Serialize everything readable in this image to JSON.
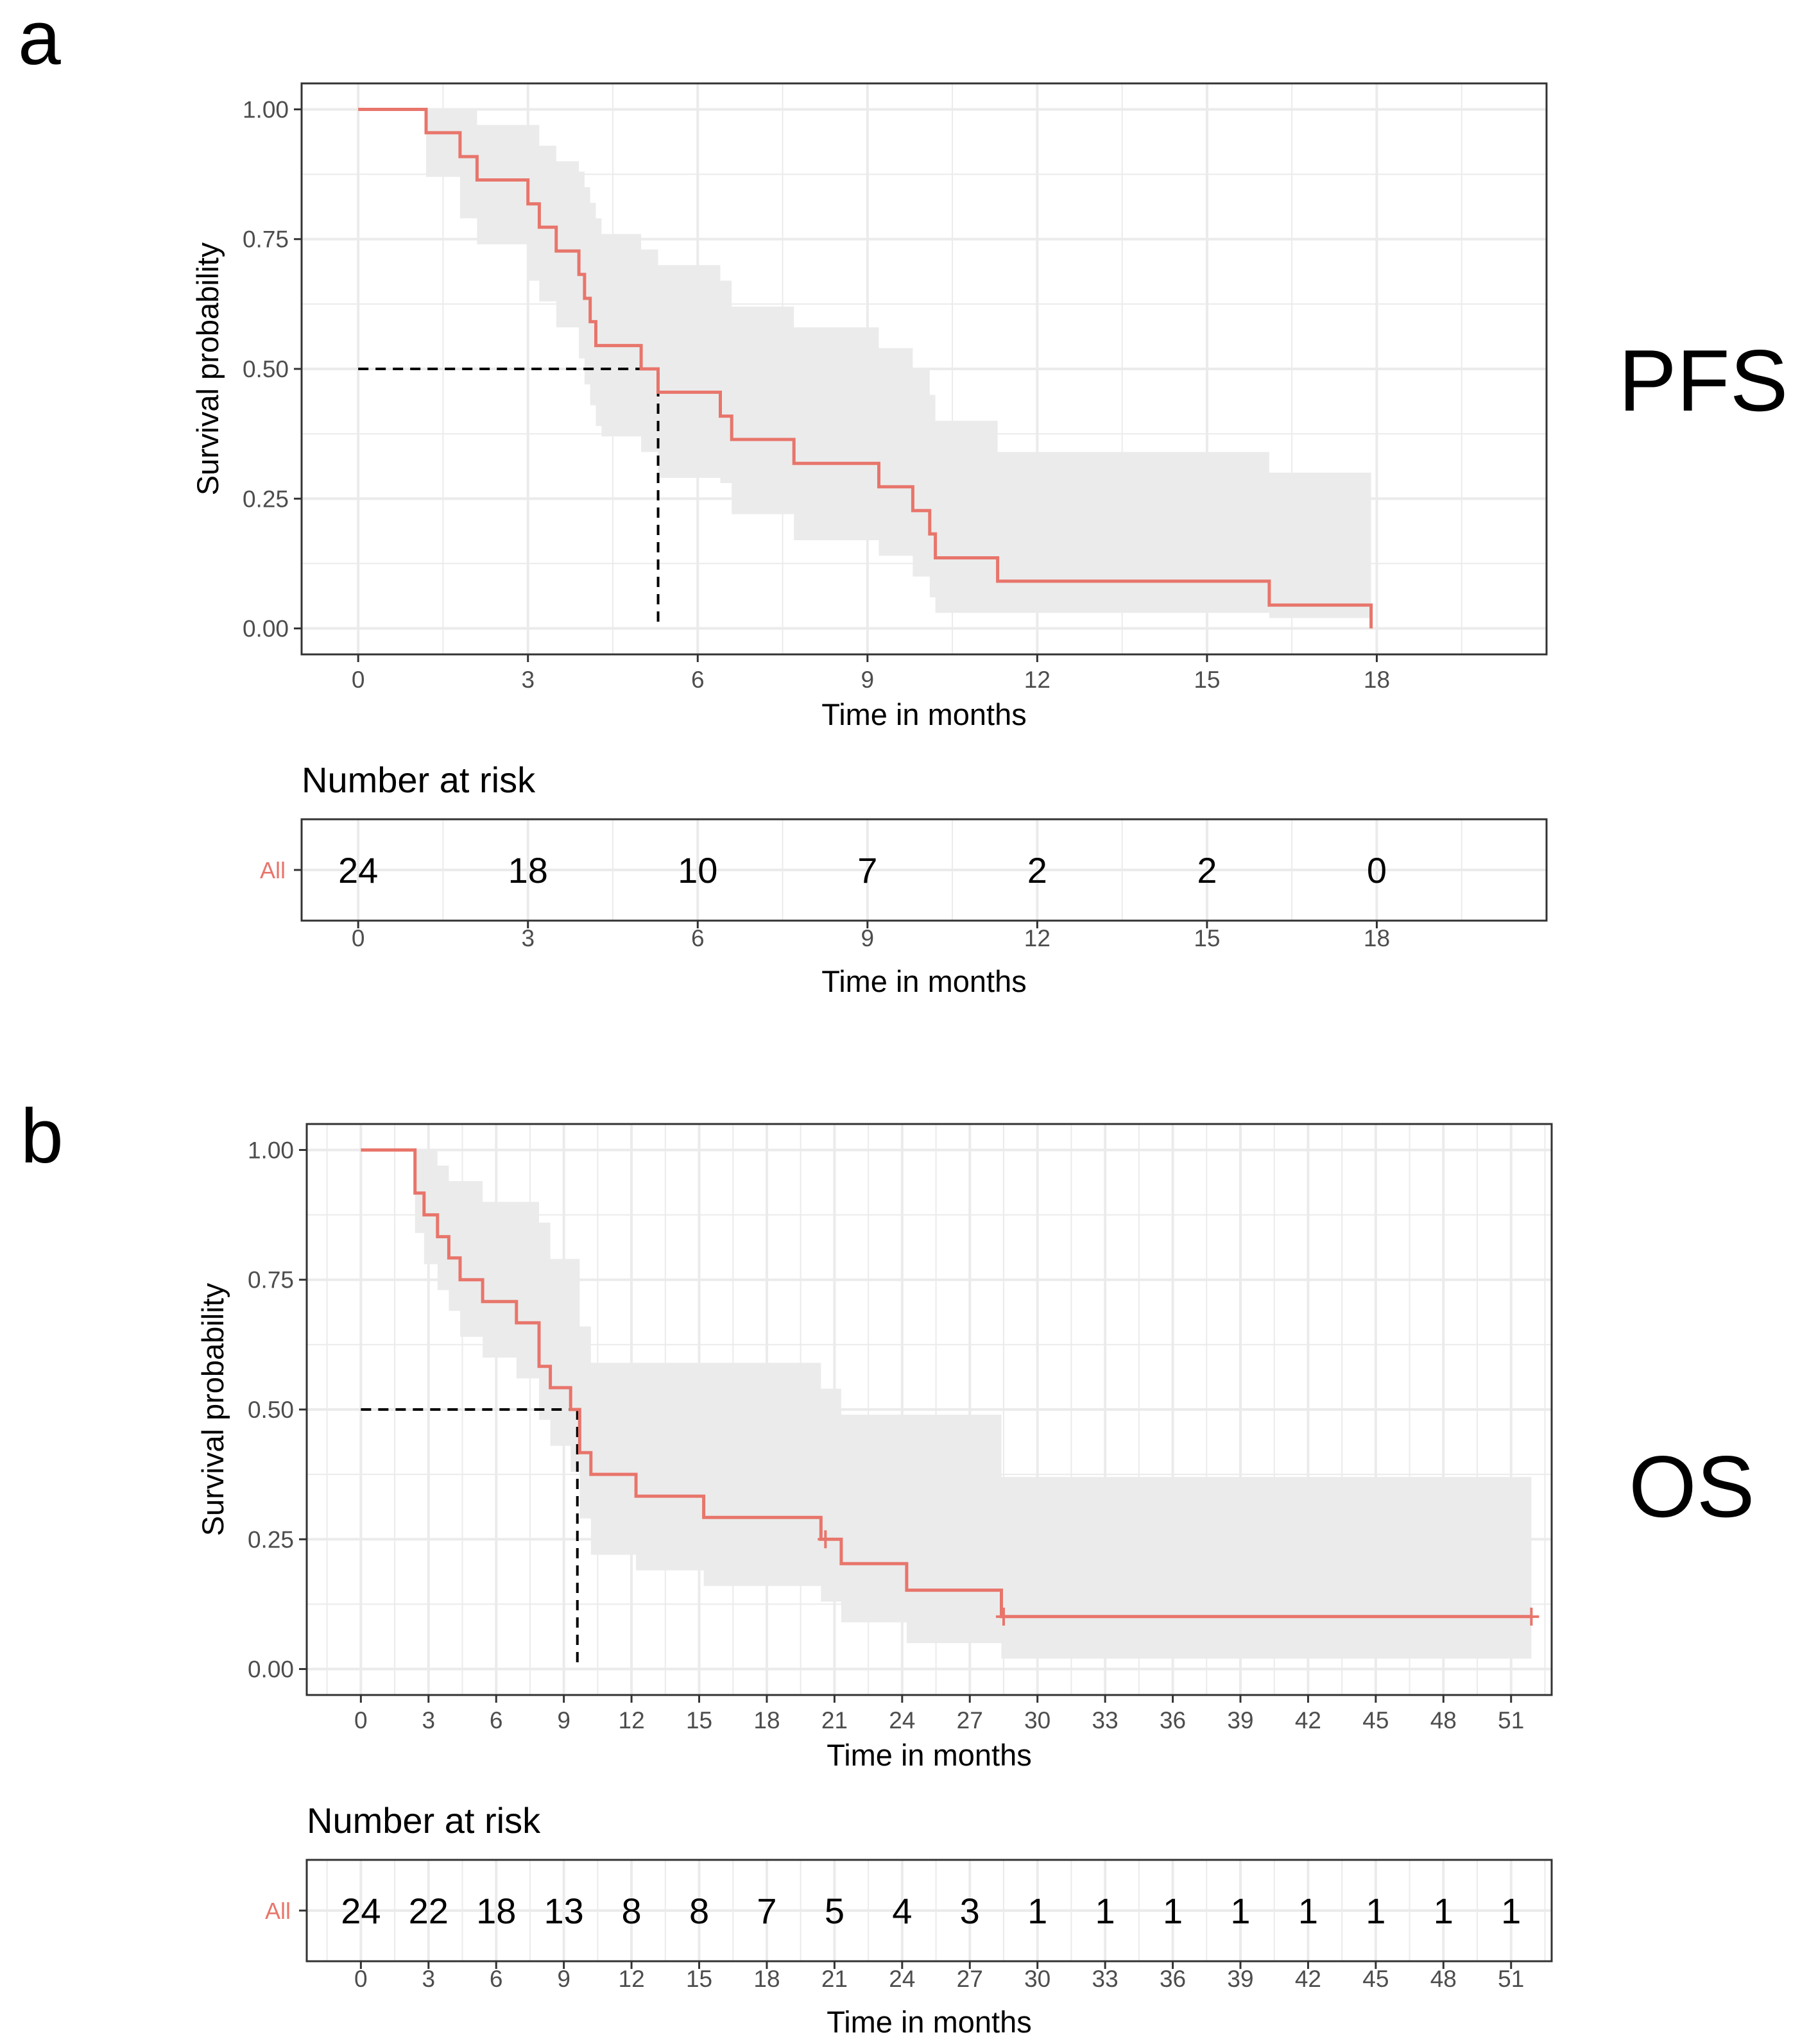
{
  "colors": {
    "curve": "#E8756B",
    "ci_band": "#EBEBEB",
    "grid": "#EBEBEB",
    "frame": "#333333",
    "median_line": "#000000"
  },
  "chart_data": [
    {
      "panel": "a",
      "tag": "PFS",
      "type": "line",
      "subtype": "kaplan-meier",
      "xlabel": "Time in months",
      "ylabel": "Survival probability",
      "xlim": [
        -1.0,
        21.0
      ],
      "ylim": [
        -0.05,
        1.05
      ],
      "xticks": [
        0,
        3,
        6,
        9,
        12,
        15,
        18
      ],
      "yticks": [
        0.0,
        0.25,
        0.5,
        0.75,
        1.0
      ],
      "ytick_labels": [
        "0.00",
        "0.25",
        "0.50",
        "0.75",
        "1.00"
      ],
      "grid": true,
      "median": 5.3,
      "series": [
        {
          "strata": "All",
          "x": [
            0,
            1.2,
            1.8,
            2.1,
            3.0,
            3.2,
            3.5,
            3.9,
            4.0,
            4.1,
            4.2,
            4.3,
            4.4,
            5.0,
            5.3,
            5.6,
            6.4,
            6.6,
            7.7,
            9.2,
            9.8,
            10.1,
            10.2,
            11.3,
            16.1,
            17.9
          ],
          "y": [
            1.0,
            0.955,
            0.909,
            0.864,
            0.818,
            0.773,
            0.727,
            0.682,
            0.636,
            0.591,
            0.545,
            0.545,
            0.545,
            0.5,
            0.455,
            0.455,
            0.409,
            0.364,
            0.318,
            0.273,
            0.227,
            0.182,
            0.136,
            0.091,
            0.045,
            0.0
          ],
          "censor_x": [],
          "ci_upper": [
            1.0,
            1.0,
            1.0,
            0.97,
            0.97,
            0.93,
            0.9,
            0.88,
            0.85,
            0.82,
            0.79,
            0.76,
            0.76,
            0.73,
            0.7,
            0.7,
            0.67,
            0.62,
            0.58,
            0.54,
            0.5,
            0.45,
            0.4,
            0.34,
            0.3,
            0.3
          ],
          "ci_lower": [
            1.0,
            0.87,
            0.79,
            0.74,
            0.67,
            0.63,
            0.58,
            0.52,
            0.47,
            0.43,
            0.39,
            0.37,
            0.37,
            0.34,
            0.29,
            0.29,
            0.28,
            0.22,
            0.17,
            0.14,
            0.1,
            0.06,
            0.03,
            0.03,
            0.02,
            0.02
          ]
        }
      ],
      "risk_table": {
        "title": "Number at risk",
        "strata_label": "All",
        "times": [
          0,
          3,
          6,
          9,
          12,
          15,
          18
        ],
        "counts": [
          "24",
          "18",
          "10",
          "7",
          "2",
          "2",
          "0"
        ],
        "xlabel": "Time in months"
      }
    },
    {
      "panel": "b",
      "tag": "OS",
      "type": "line",
      "subtype": "kaplan-meier",
      "xlabel": "Time in months",
      "ylabel": "Survival probability",
      "xlim": [
        -2.4,
        52.8
      ],
      "ylim": [
        -0.05,
        1.05
      ],
      "xticks": [
        0,
        3,
        6,
        9,
        12,
        15,
        18,
        21,
        24,
        27,
        30,
        33,
        36,
        39,
        42,
        45,
        48,
        51
      ],
      "yticks": [
        0.0,
        0.25,
        0.5,
        0.75,
        1.0
      ],
      "ytick_labels": [
        "0.00",
        "0.25",
        "0.50",
        "0.75",
        "1.00"
      ],
      "grid": true,
      "median": 9.6,
      "series": [
        {
          "strata": "All",
          "x": [
            0,
            2.4,
            2.8,
            3.4,
            3.9,
            4.4,
            5.4,
            6.9,
            7.9,
            8.4,
            9.3,
            9.7,
            10.2,
            12.2,
            15.2,
            20.4,
            21.3,
            24.2,
            28.4,
            51.9
          ],
          "y": [
            1.0,
            0.917,
            0.875,
            0.833,
            0.792,
            0.75,
            0.708,
            0.667,
            0.583,
            0.542,
            0.5,
            0.417,
            0.375,
            0.333,
            0.292,
            0.25,
            0.203,
            0.152,
            0.101,
            0.101
          ],
          "censor_x": [
            20.6,
            28.5,
            51.9
          ],
          "ci_upper": [
            1.0,
            1.0,
            1.0,
            0.97,
            0.94,
            0.94,
            0.9,
            0.9,
            0.86,
            0.79,
            0.79,
            0.66,
            0.59,
            0.59,
            0.59,
            0.54,
            0.49,
            0.49,
            0.37,
            0.37
          ],
          "ci_lower": [
            1.0,
            0.84,
            0.78,
            0.73,
            0.69,
            0.64,
            0.6,
            0.56,
            0.48,
            0.43,
            0.38,
            0.29,
            0.22,
            0.19,
            0.16,
            0.13,
            0.09,
            0.05,
            0.02,
            0.02
          ]
        }
      ],
      "risk_table": {
        "title": "Number at risk",
        "strata_label": "All",
        "times": [
          0,
          3,
          6,
          9,
          12,
          15,
          18,
          21,
          24,
          27,
          30,
          33,
          36,
          39,
          42,
          45,
          48,
          51
        ],
        "counts": [
          "24",
          "22",
          "18",
          "13",
          "8",
          "8",
          "7",
          "5",
          "4",
          "3",
          "1",
          "1",
          "1",
          "1",
          "1",
          "1",
          "1",
          "1"
        ],
        "xlabel": "Time in months"
      }
    }
  ]
}
